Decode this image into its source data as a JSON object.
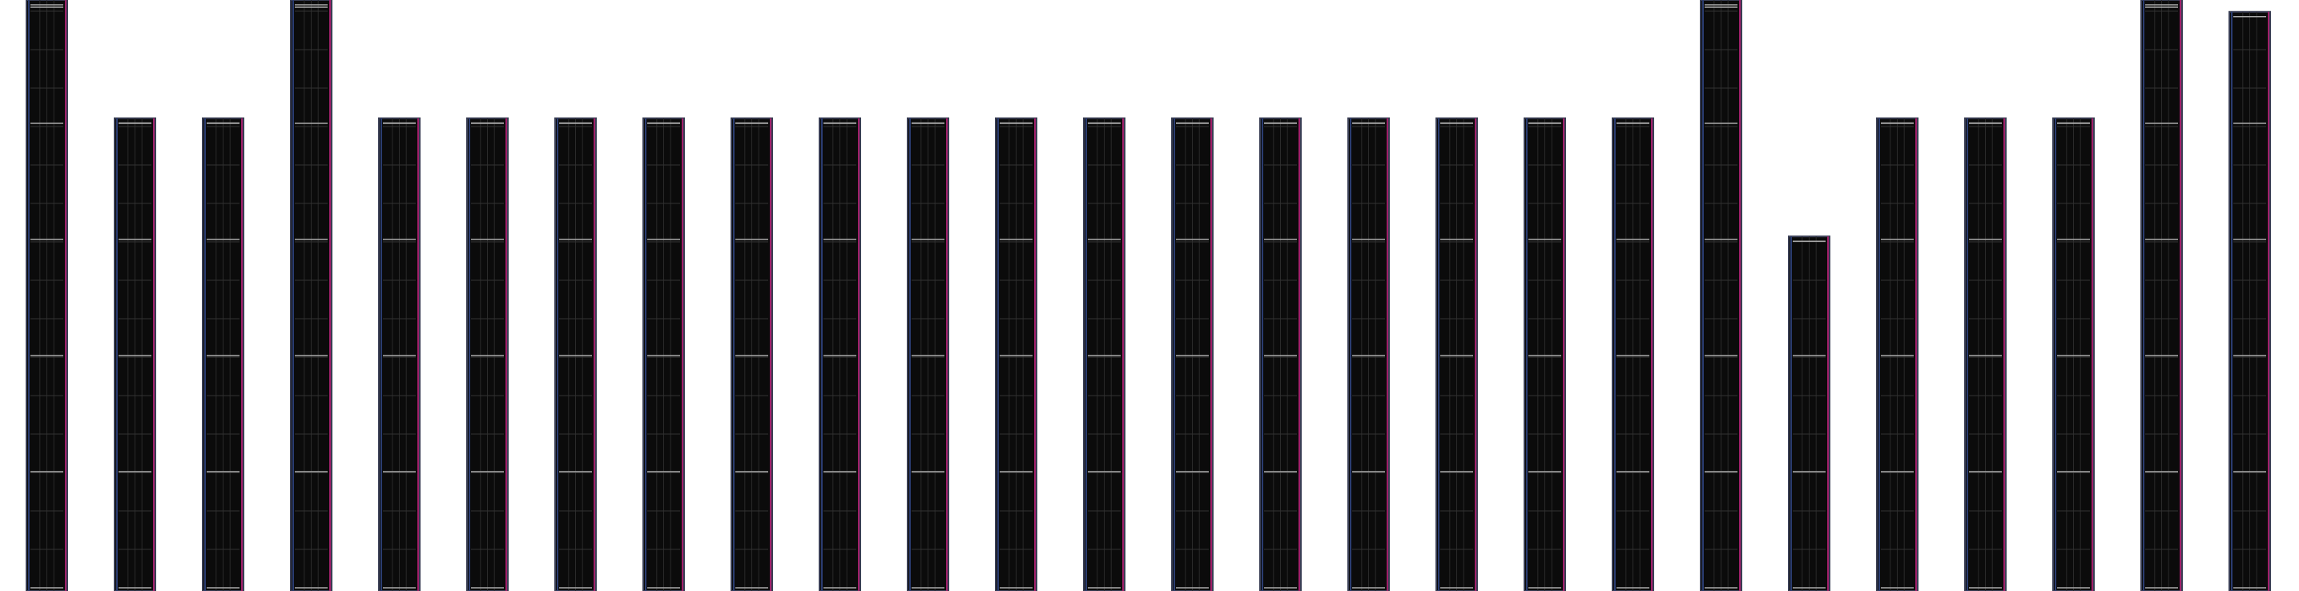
{
  "chart_data": {
    "type": "bar",
    "categories": [
      null,
      null,
      null,
      null,
      null,
      null,
      null,
      null,
      null,
      null,
      null,
      null,
      null,
      null,
      null,
      null,
      null,
      null,
      null,
      null,
      null,
      null,
      null,
      null,
      null,
      null
    ],
    "values": [
      100,
      80,
      80,
      100,
      80,
      80,
      80,
      80,
      80,
      80,
      80,
      80,
      80,
      80,
      80,
      80,
      80,
      80,
      80,
      100,
      60,
      80,
      80,
      80,
      100,
      98
    ],
    "color": "#0b0b0b",
    "ylim": [
      0,
      100
    ]
  }
}
